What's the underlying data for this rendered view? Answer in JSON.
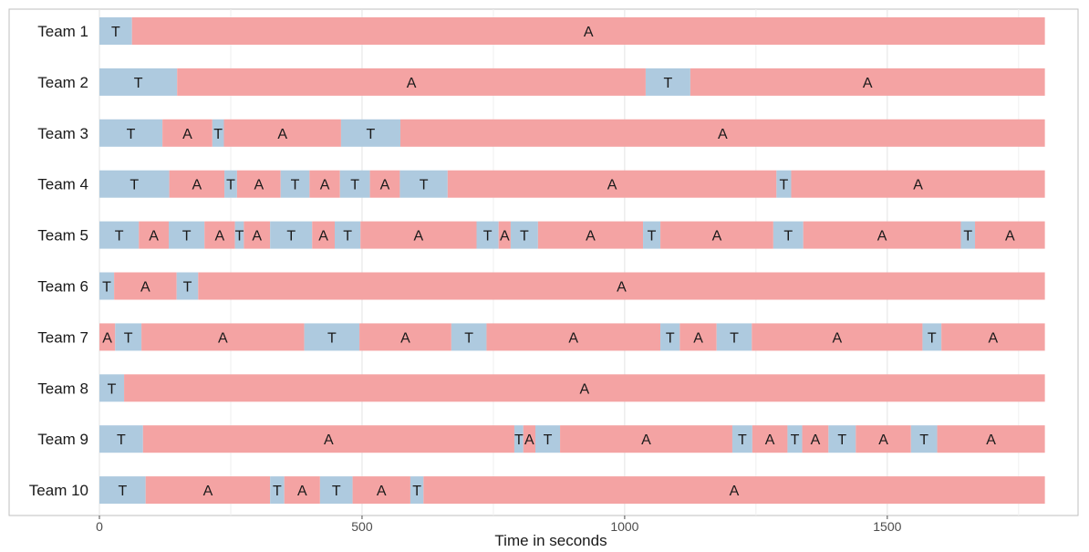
{
  "chart_data": {
    "type": "bar",
    "orientation": "horizontal-timeline",
    "xlabel": "Time in seconds",
    "xlim": [
      0,
      1810
    ],
    "xticks": [
      0,
      500,
      1000,
      1500
    ],
    "grid": true,
    "legend": "none",
    "colors": {
      "T": "#aecadf",
      "A": "#f4a3a3"
    },
    "teams": [
      {
        "name": "Team 1",
        "segments": [
          [
            "T",
            0,
            62
          ],
          [
            "A",
            62,
            1800
          ]
        ]
      },
      {
        "name": "Team 2",
        "segments": [
          [
            "T",
            0,
            148
          ],
          [
            "A",
            148,
            1040
          ],
          [
            "T",
            1040,
            1125
          ],
          [
            "A",
            1125,
            1800
          ]
        ]
      },
      {
        "name": "Team 3",
        "segments": [
          [
            "T",
            0,
            120
          ],
          [
            "A",
            120,
            215
          ],
          [
            "T",
            215,
            237
          ],
          [
            "A",
            237,
            460
          ],
          [
            "T",
            460,
            573
          ],
          [
            "A",
            573,
            1800
          ]
        ]
      },
      {
        "name": "Team 4",
        "segments": [
          [
            "T",
            0,
            133
          ],
          [
            "A",
            133,
            238
          ],
          [
            "T",
            238,
            262
          ],
          [
            "A",
            262,
            345
          ],
          [
            "T",
            345,
            400
          ],
          [
            "A",
            400,
            458
          ],
          [
            "T",
            458,
            515
          ],
          [
            "A",
            515,
            572
          ],
          [
            "T",
            572,
            663
          ],
          [
            "A",
            663,
            1289
          ],
          [
            "T",
            1289,
            1317
          ],
          [
            "A",
            1317,
            1800
          ]
        ]
      },
      {
        "name": "Team 5",
        "segments": [
          [
            "T",
            0,
            75
          ],
          [
            "A",
            75,
            132
          ],
          [
            "T",
            132,
            200
          ],
          [
            "A",
            200,
            258
          ],
          [
            "T",
            258,
            275
          ],
          [
            "A",
            275,
            325
          ],
          [
            "T",
            325,
            405
          ],
          [
            "A",
            405,
            448
          ],
          [
            "T",
            448,
            497
          ],
          [
            "A",
            497,
            718
          ],
          [
            "T",
            718,
            760
          ],
          [
            "A",
            760,
            783
          ],
          [
            "T",
            783,
            835
          ],
          [
            "A",
            835,
            1035
          ],
          [
            "T",
            1035,
            1068
          ],
          [
            "A",
            1068,
            1283
          ],
          [
            "T",
            1283,
            1340
          ],
          [
            "A",
            1340,
            1640
          ],
          [
            "T",
            1640,
            1667
          ],
          [
            "A",
            1667,
            1800
          ]
        ]
      },
      {
        "name": "Team 6",
        "segments": [
          [
            "T",
            0,
            28
          ],
          [
            "A",
            28,
            147
          ],
          [
            "T",
            147,
            188
          ],
          [
            "A",
            188,
            1800
          ]
        ]
      },
      {
        "name": "Team 7",
        "segments": [
          [
            "A",
            0,
            30
          ],
          [
            "T",
            30,
            80
          ],
          [
            "A",
            80,
            390
          ],
          [
            "T",
            390,
            495
          ],
          [
            "A",
            495,
            670
          ],
          [
            "T",
            670,
            737
          ],
          [
            "A",
            737,
            1068
          ],
          [
            "T",
            1068,
            1105
          ],
          [
            "A",
            1105,
            1175
          ],
          [
            "T",
            1175,
            1242
          ],
          [
            "A",
            1242,
            1567
          ],
          [
            "T",
            1567,
            1603
          ],
          [
            "A",
            1603,
            1800
          ]
        ]
      },
      {
        "name": "Team 8",
        "segments": [
          [
            "T",
            0,
            47
          ],
          [
            "A",
            47,
            1800
          ]
        ]
      },
      {
        "name": "Team 9",
        "segments": [
          [
            "T",
            0,
            83
          ],
          [
            "A",
            83,
            790
          ],
          [
            "T",
            790,
            807
          ],
          [
            "A",
            807,
            830
          ],
          [
            "T",
            830,
            877
          ],
          [
            "A",
            877,
            1205
          ],
          [
            "T",
            1205,
            1243
          ],
          [
            "A",
            1243,
            1310
          ],
          [
            "T",
            1310,
            1338
          ],
          [
            "A",
            1338,
            1388
          ],
          [
            "T",
            1388,
            1440
          ],
          [
            "A",
            1440,
            1545
          ],
          [
            "T",
            1545,
            1595
          ],
          [
            "A",
            1595,
            1800
          ]
        ]
      },
      {
        "name": "Team 10",
        "segments": [
          [
            "T",
            0,
            88
          ],
          [
            "A",
            88,
            325
          ],
          [
            "T",
            325,
            352
          ],
          [
            "A",
            352,
            420
          ],
          [
            "T",
            420,
            482
          ],
          [
            "A",
            482,
            592
          ],
          [
            "T",
            592,
            617
          ],
          [
            "A",
            617,
            1800
          ]
        ]
      }
    ]
  }
}
